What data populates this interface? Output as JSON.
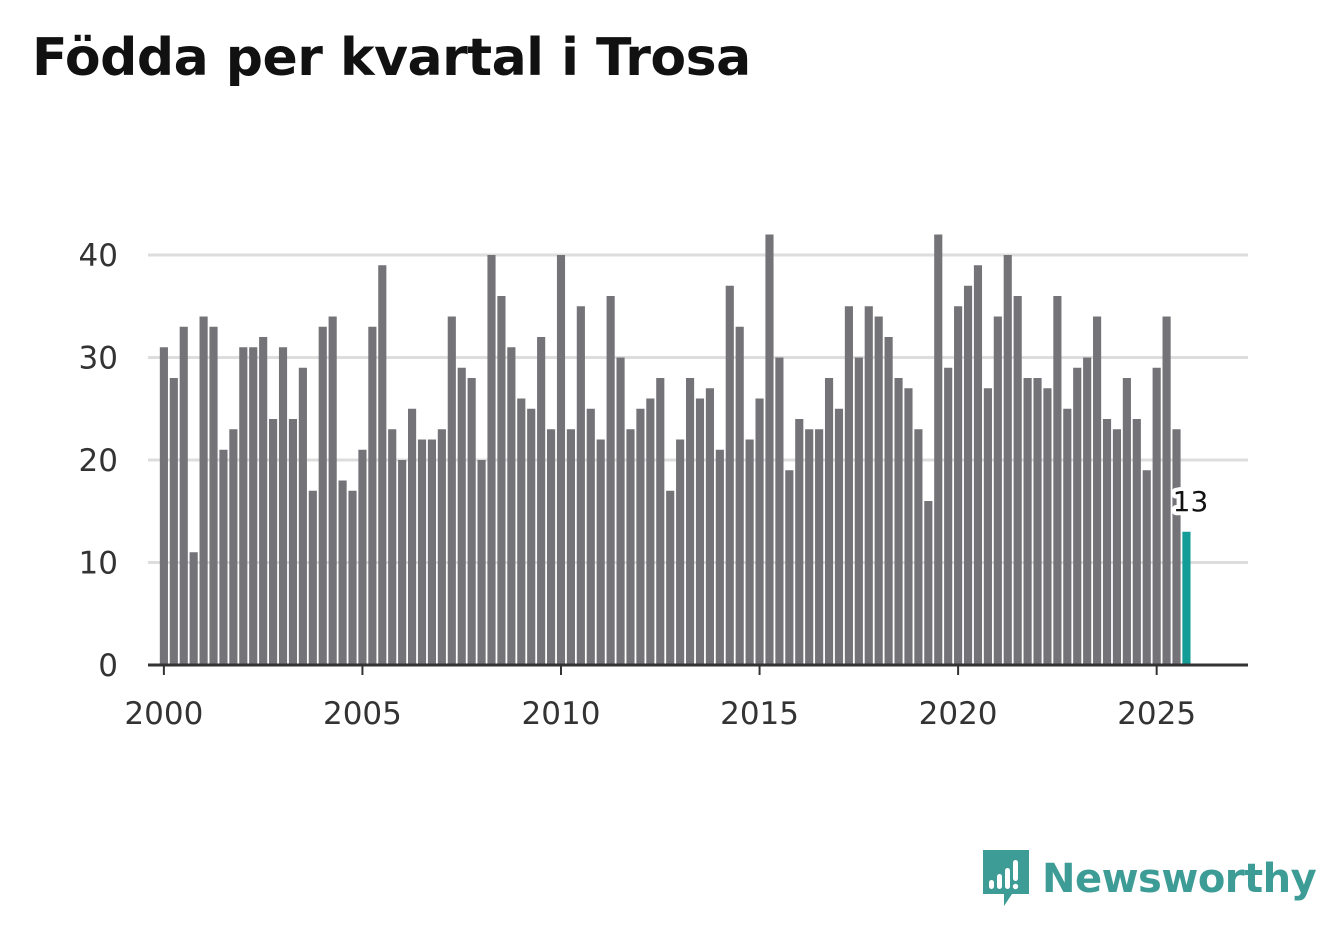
{
  "title": "Födda per kvartal i Trosa",
  "brand": {
    "name": "Newsworthy",
    "color": "#3d9c96",
    "icon": "newsworthy-logo-icon"
  },
  "colors": {
    "bar": "#747378",
    "highlight": "#149c96",
    "grid": "#dddddd",
    "axis": "#333333"
  },
  "chart_data": {
    "type": "bar",
    "title": "Födda per kvartal i Trosa",
    "xlabel": "",
    "ylabel": "",
    "ylim": [
      0,
      42
    ],
    "xlim": [
      1999.6,
      2027.3
    ],
    "yticks": [
      0,
      10,
      20,
      30,
      40
    ],
    "xticks": [
      2000,
      2005,
      2010,
      2015,
      2020,
      2025
    ],
    "start": {
      "year": 2000,
      "quarter": 1
    },
    "grid": true,
    "highlight": {
      "index": 103,
      "label": "13"
    },
    "values": [
      31,
      28,
      33,
      11,
      34,
      33,
      21,
      23,
      31,
      31,
      32,
      24,
      31,
      24,
      29,
      17,
      33,
      34,
      18,
      17,
      21,
      33,
      39,
      23,
      20,
      25,
      22,
      22,
      23,
      34,
      29,
      28,
      20,
      40,
      36,
      31,
      26,
      25,
      32,
      23,
      40,
      23,
      35,
      25,
      22,
      36,
      30,
      23,
      25,
      26,
      28,
      17,
      22,
      28,
      26,
      27,
      21,
      37,
      33,
      22,
      26,
      42,
      30,
      19,
      24,
      23,
      23,
      28,
      25,
      35,
      30,
      35,
      34,
      32,
      28,
      27,
      23,
      16,
      42,
      29,
      35,
      37,
      39,
      27,
      34,
      40,
      36,
      28,
      28,
      27,
      36,
      25,
      29,
      30,
      34,
      24,
      23,
      28,
      24,
      19,
      29,
      34,
      23,
      13
    ]
  }
}
